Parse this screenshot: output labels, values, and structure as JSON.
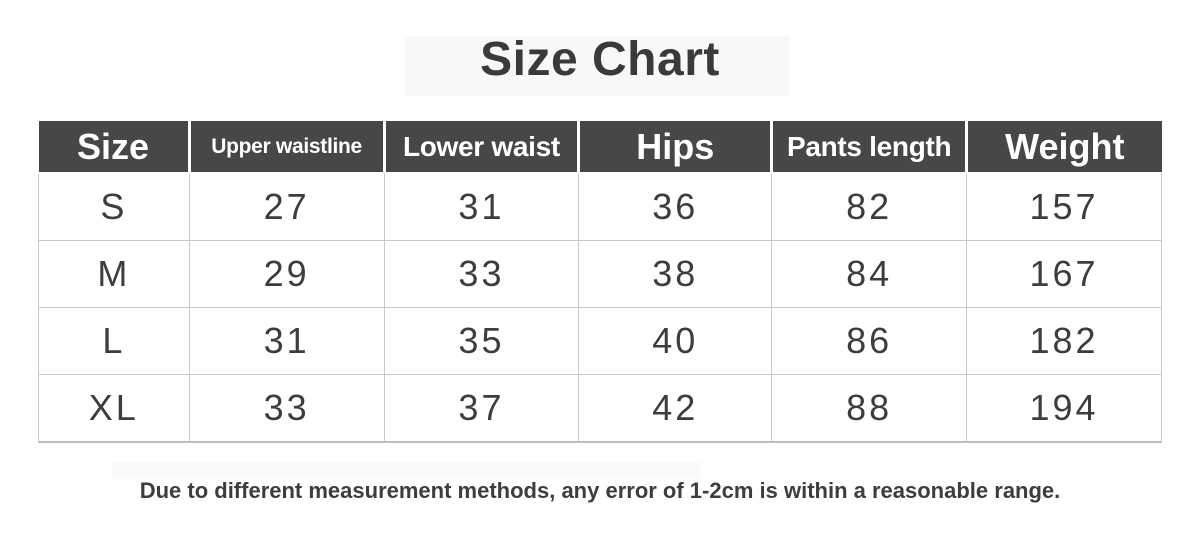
{
  "title": "Size Chart",
  "table": {
    "columns": [
      {
        "label": "Size"
      },
      {
        "label": "Upper waistline"
      },
      {
        "label": "Lower waist"
      },
      {
        "label": "Hips"
      },
      {
        "label": "Pants length"
      },
      {
        "label": "Weight"
      }
    ],
    "rows": [
      [
        "S",
        "27",
        "31",
        "36",
        "82",
        "157"
      ],
      [
        "M",
        "29",
        "33",
        "38",
        "84",
        "167"
      ],
      [
        "L",
        "31",
        "35",
        "40",
        "86",
        "182"
      ],
      [
        "XL",
        "33",
        "37",
        "42",
        "88",
        "194"
      ]
    ]
  },
  "note": "Due to different measurement methods, any error of 1-2cm is within a reasonable range.",
  "colors": {
    "header_bg": "#474747",
    "header_text": "#ffffff",
    "body_text": "#3d3d3d",
    "grid_line": "#c9c9c9",
    "title_text": "#3a3a3a"
  },
  "chart_data": {
    "type": "table",
    "title": "Size Chart",
    "columns": [
      "Size",
      "Upper waistline",
      "Lower waist",
      "Hips",
      "Pants length",
      "Weight"
    ],
    "rows": [
      [
        "S",
        27,
        31,
        36,
        82,
        157
      ],
      [
        "M",
        29,
        33,
        38,
        84,
        167
      ],
      [
        "L",
        31,
        35,
        40,
        86,
        182
      ],
      [
        "XL",
        33,
        37,
        42,
        88,
        194
      ]
    ],
    "note": "Due to different measurement methods, any error of 1-2cm is within a reasonable range."
  }
}
